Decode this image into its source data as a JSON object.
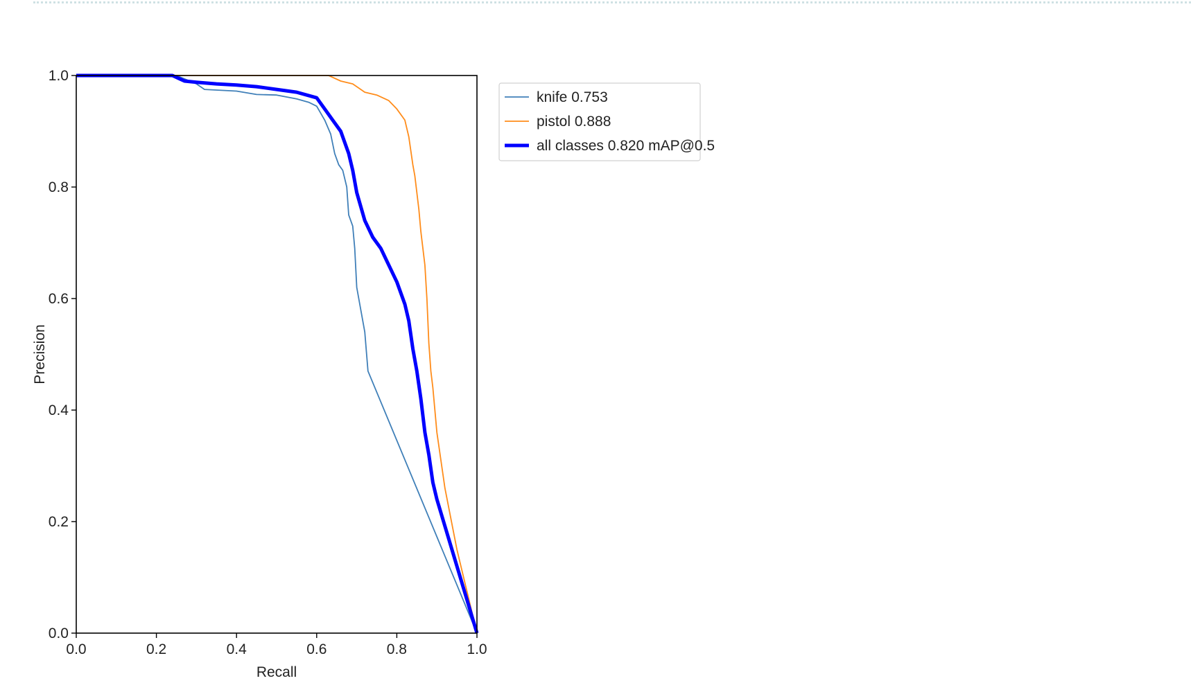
{
  "chart_data": {
    "type": "line",
    "title": "",
    "xlabel": "Recall",
    "ylabel": "Precision",
    "xlim": [
      0,
      1
    ],
    "ylim": [
      0,
      1
    ],
    "x_ticks": [
      "0.0",
      "0.2",
      "0.4",
      "0.6",
      "0.8",
      "1.0"
    ],
    "y_ticks": [
      "0.0",
      "0.2",
      "0.4",
      "0.6",
      "0.8",
      "1.0"
    ],
    "grid": false,
    "legend_position": "outside-right-top",
    "series": [
      {
        "name": "knife 0.753",
        "color": "#3f7fb8",
        "points": [
          [
            0.0,
            1.0
          ],
          [
            0.25,
            1.0
          ],
          [
            0.3,
            0.985
          ],
          [
            0.32,
            0.975
          ],
          [
            0.4,
            0.972
          ],
          [
            0.45,
            0.966
          ],
          [
            0.5,
            0.965
          ],
          [
            0.55,
            0.958
          ],
          [
            0.58,
            0.952
          ],
          [
            0.6,
            0.945
          ],
          [
            0.62,
            0.92
          ],
          [
            0.635,
            0.895
          ],
          [
            0.645,
            0.86
          ],
          [
            0.655,
            0.84
          ],
          [
            0.665,
            0.83
          ],
          [
            0.675,
            0.8
          ],
          [
            0.68,
            0.75
          ],
          [
            0.69,
            0.73
          ],
          [
            0.695,
            0.69
          ],
          [
            0.7,
            0.62
          ],
          [
            0.71,
            0.58
          ],
          [
            0.72,
            0.54
          ],
          [
            0.728,
            0.47
          ],
          [
            1.0,
            0.0
          ]
        ]
      },
      {
        "name": "pistol 0.888",
        "color": "#ff8c1a",
        "points": [
          [
            0.0,
            1.0
          ],
          [
            0.63,
            1.0
          ],
          [
            0.66,
            0.99
          ],
          [
            0.69,
            0.985
          ],
          [
            0.72,
            0.97
          ],
          [
            0.75,
            0.965
          ],
          [
            0.78,
            0.955
          ],
          [
            0.8,
            0.94
          ],
          [
            0.82,
            0.92
          ],
          [
            0.83,
            0.89
          ],
          [
            0.84,
            0.84
          ],
          [
            0.845,
            0.82
          ],
          [
            0.855,
            0.76
          ],
          [
            0.86,
            0.72
          ],
          [
            0.87,
            0.66
          ],
          [
            0.875,
            0.6
          ],
          [
            0.88,
            0.52
          ],
          [
            0.885,
            0.47
          ],
          [
            0.89,
            0.44
          ],
          [
            0.895,
            0.4
          ],
          [
            0.9,
            0.36
          ],
          [
            0.92,
            0.26
          ],
          [
            0.95,
            0.15
          ],
          [
            1.0,
            0.0
          ]
        ]
      },
      {
        "name": "all classes 0.820 mAP@0.5",
        "color": "#0000ff",
        "points": [
          [
            0.0,
            1.0
          ],
          [
            0.24,
            1.0
          ],
          [
            0.27,
            0.99
          ],
          [
            0.3,
            0.988
          ],
          [
            0.35,
            0.985
          ],
          [
            0.4,
            0.983
          ],
          [
            0.45,
            0.98
          ],
          [
            0.5,
            0.975
          ],
          [
            0.55,
            0.97
          ],
          [
            0.6,
            0.96
          ],
          [
            0.62,
            0.94
          ],
          [
            0.64,
            0.92
          ],
          [
            0.66,
            0.9
          ],
          [
            0.68,
            0.86
          ],
          [
            0.69,
            0.83
          ],
          [
            0.7,
            0.79
          ],
          [
            0.72,
            0.74
          ],
          [
            0.74,
            0.71
          ],
          [
            0.76,
            0.69
          ],
          [
            0.78,
            0.66
          ],
          [
            0.8,
            0.63
          ],
          [
            0.82,
            0.59
          ],
          [
            0.83,
            0.56
          ],
          [
            0.84,
            0.51
          ],
          [
            0.85,
            0.47
          ],
          [
            0.86,
            0.42
          ],
          [
            0.87,
            0.36
          ],
          [
            0.88,
            0.32
          ],
          [
            0.89,
            0.27
          ],
          [
            0.9,
            0.24
          ],
          [
            0.95,
            0.12
          ],
          [
            1.0,
            0.0
          ]
        ]
      }
    ]
  }
}
